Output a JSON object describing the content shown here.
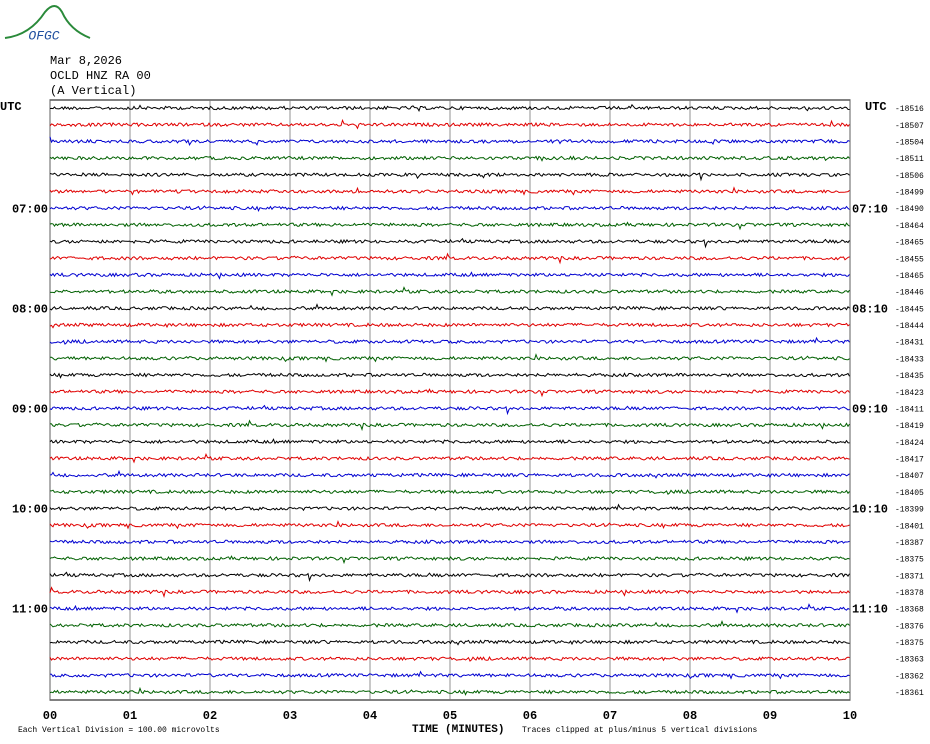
{
  "logo": "OFGC",
  "chart_data": {
    "type": "helicorder",
    "title_lines": [
      "Mar 8,2026",
      "OCLD HNZ RA 00",
      "(A Vertical)"
    ],
    "left_corner_label": "UTC",
    "right_corner_label": "UTC",
    "xlabel": "TIME (MINUTES)",
    "footer_left": "Each Vertical Division =  100.00 microvolts",
    "footer_right": "Traces clipped at plus/minus 5 vertical divisions",
    "xlim": [
      0,
      10
    ],
    "xticks": [
      {
        "value": 0,
        "label": "00"
      },
      {
        "value": 1,
        "label": "01"
      },
      {
        "value": 2,
        "label": "02"
      },
      {
        "value": 3,
        "label": "03"
      },
      {
        "value": 4,
        "label": "04"
      },
      {
        "value": 5,
        "label": "05"
      },
      {
        "value": 6,
        "label": "06"
      },
      {
        "value": 7,
        "label": "07"
      },
      {
        "value": 8,
        "label": "08"
      },
      {
        "value": 9,
        "label": "09"
      },
      {
        "value": 10,
        "label": "10"
      }
    ],
    "grid": true,
    "colors": [
      "#000000",
      "#e00000",
      "#0000d0",
      "#006000"
    ],
    "row_offsets": [
      -18516,
      -18507,
      -18504,
      -18511,
      -18506,
      -18499,
      -18490,
      -18464,
      -18465,
      -18455,
      -18465,
      -18446,
      -18445,
      -18444,
      -18431,
      -18433,
      -18435,
      -18423,
      -18411,
      -18419,
      -18424,
      -18417,
      -18407,
      -18405,
      -18399,
      -18401,
      -18387,
      -18375,
      -18371,
      -18378,
      -18368,
      -18376,
      -18375,
      -18363,
      -18362,
      -18361
    ],
    "hour_rows": [
      6,
      12,
      18,
      24,
      30
    ],
    "left_hour_labels": [
      "07:00",
      "08:00",
      "09:00",
      "10:00",
      "11:00"
    ],
    "right_hour_labels": [
      "07:10",
      "08:10",
      "09:10",
      "10:10",
      "11:10"
    ]
  }
}
